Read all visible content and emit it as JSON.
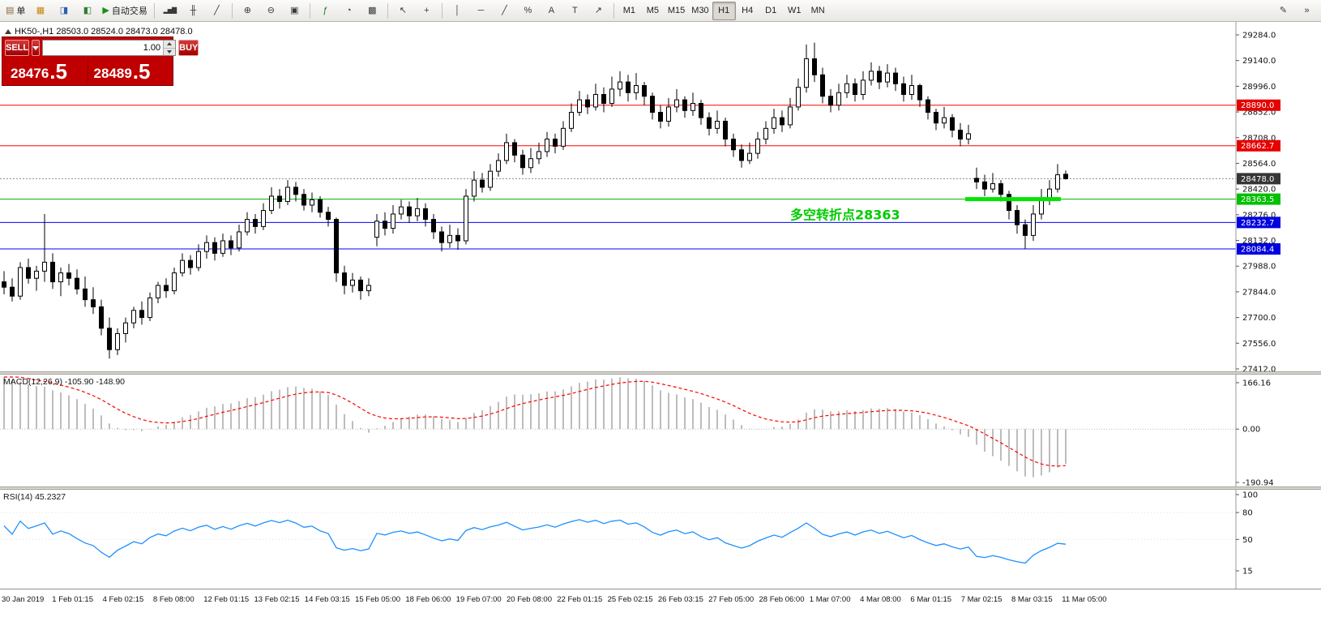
{
  "toolbar": {
    "groups": [
      {
        "items": [
          {
            "name": "new-order-button",
            "icon": "new-order",
            "label": "单"
          },
          {
            "name": "market-watch-button",
            "icon": "market-watch"
          },
          {
            "name": "data-window-button",
            "icon": "data-window"
          },
          {
            "name": "navigator-button",
            "icon": "navigator"
          },
          {
            "name": "autotrading-button",
            "icon": "autotrading",
            "label": "自动交易"
          }
        ]
      },
      {
        "items": [
          {
            "name": "bar-chart-button",
            "icon": "bar-chart"
          },
          {
            "name": "candle-chart-button",
            "icon": "candle-chart"
          },
          {
            "name": "line-chart-button",
            "icon": "line-chart"
          }
        ]
      },
      {
        "items": [
          {
            "name": "zoom-in-button",
            "icon": "zoom-in"
          },
          {
            "name": "zoom-out-button",
            "icon": "zoom-out"
          },
          {
            "name": "tile-windows-button",
            "icon": "tile-windows"
          }
        ]
      },
      {
        "items": [
          {
            "name": "indicators-button",
            "icon": "indicators"
          },
          {
            "name": "periods-button",
            "icon": "periods"
          },
          {
            "name": "templates-button",
            "icon": "templates"
          }
        ]
      },
      {
        "items": [
          {
            "name": "cursor-button",
            "icon": "cursor"
          },
          {
            "name": "crosshair-button",
            "icon": "crosshair"
          }
        ]
      },
      {
        "items": [
          {
            "name": "vertical-line-button",
            "icon": "vertical-line"
          },
          {
            "name": "horizontal-line-button",
            "icon": "horizontal-line"
          },
          {
            "name": "trendline-button",
            "icon": "trendline"
          },
          {
            "name": "fibonacci-button",
            "icon": "fibonacci"
          },
          {
            "name": "text-button",
            "icon": "text"
          },
          {
            "name": "label-button",
            "icon": "label"
          },
          {
            "name": "arrows-button",
            "icon": "arrows"
          }
        ]
      },
      {
        "items": [
          {
            "name": "tf-m1-button",
            "label": "M1"
          },
          {
            "name": "tf-m5-button",
            "label": "M5"
          },
          {
            "name": "tf-m15-button",
            "label": "M15"
          },
          {
            "name": "tf-m30-button",
            "label": "M30"
          },
          {
            "name": "tf-h1-button",
            "label": "H1",
            "active": true
          },
          {
            "name": "tf-h4-button",
            "label": "H4"
          },
          {
            "name": "tf-d1-button",
            "label": "D1"
          },
          {
            "name": "tf-w1-button",
            "label": "W1"
          },
          {
            "name": "tf-mn-button",
            "label": "MN"
          }
        ]
      }
    ],
    "right_items": [
      {
        "name": "pencil-button",
        "icon": "pencil"
      },
      {
        "name": "quick-jump-button",
        "icon": "quick-jump"
      }
    ]
  },
  "chart": {
    "header": "HK50-,H1 28503.0 28524.0 28473.0 28478.0",
    "trade_panel": {
      "sell_label": "SELL",
      "buy_label": "BUY",
      "volume": "1.00",
      "sell_price": "28476.5",
      "buy_price": "28489.5"
    },
    "hlines": [
      {
        "price": 28890.0,
        "label": "28890.0",
        "color": "#ff0000",
        "badge": "#e60000"
      },
      {
        "price": 28662.7,
        "label": "28662.7",
        "color": "#ff0000",
        "badge": "#e60000"
      },
      {
        "price": 28478.0,
        "label": "28478.0",
        "color": "#8a8a8a",
        "badge": "#353535",
        "dash": "2,2"
      },
      {
        "price": 28363.5,
        "label": "28363.5",
        "color": "#00b400",
        "badge": "#00c000"
      },
      {
        "price": 28232.7,
        "label": "28232.7",
        "color": "#0000ff",
        "badge": "#0000e0"
      },
      {
        "price": 28084.4,
        "label": "28084.4",
        "color": "#0000ff",
        "badge": "#0000e0"
      }
    ],
    "green_zone": {
      "price": 28363.5,
      "from_index": 119,
      "to_index": 130,
      "color": "#00e600",
      "thickness": 5
    },
    "annotation": {
      "text": "多空转折点28363",
      "color": "#00cc00",
      "index": 97,
      "price": 28272,
      "font_size": 16
    }
  },
  "chart_data": [
    {
      "type": "candlestick",
      "title": "HK50- H1",
      "symbol": "HK50-",
      "timeframe": "H1",
      "y_axis": {
        "min": 27412.0,
        "max": 29284.0,
        "step": 144.0
      },
      "x_axis_labels": [
        "30 Jan 2019",
        "1 Feb 01:15",
        "4 Feb 02:15",
        "8 Feb 08:00",
        "12 Feb 01:15",
        "13 Feb 02:15",
        "14 Feb 03:15",
        "15 Feb 05:00",
        "18 Feb 06:00",
        "19 Feb 07:00",
        "20 Feb 08:00",
        "22 Feb 01:15",
        "25 Feb 02:15",
        "26 Feb 03:15",
        "27 Feb 05:00",
        "28 Feb 06:00",
        "1 Mar 07:00",
        "4 Mar 08:00",
        "6 Mar 01:15",
        "7 Mar 02:15",
        "8 Mar 03:15",
        "11 Mar 05:00"
      ],
      "ohlc": [
        [
          27900,
          27960,
          27830,
          27870
        ],
        [
          27870,
          27920,
          27790,
          27820
        ],
        [
          27820,
          28010,
          27800,
          27980
        ],
        [
          27980,
          28030,
          27890,
          27920
        ],
        [
          27920,
          27990,
          27850,
          27960
        ],
        [
          27960,
          28280,
          27900,
          28010
        ],
        [
          28010,
          28060,
          27860,
          27900
        ],
        [
          27900,
          27980,
          27820,
          27950
        ],
        [
          27950,
          28000,
          27880,
          27920
        ],
        [
          27920,
          27970,
          27830,
          27860
        ],
        [
          27860,
          27930,
          27760,
          27800
        ],
        [
          27800,
          27870,
          27720,
          27760
        ],
        [
          27760,
          27800,
          27600,
          27640
        ],
        [
          27640,
          27700,
          27470,
          27520
        ],
        [
          27520,
          27640,
          27490,
          27610
        ],
        [
          27610,
          27700,
          27560,
          27670
        ],
        [
          27670,
          27760,
          27640,
          27740
        ],
        [
          27740,
          27790,
          27660,
          27700
        ],
        [
          27700,
          27840,
          27680,
          27810
        ],
        [
          27810,
          27900,
          27780,
          27880
        ],
        [
          27880,
          27920,
          27810,
          27850
        ],
        [
          27850,
          27980,
          27830,
          27950
        ],
        [
          27950,
          28060,
          27930,
          28020
        ],
        [
          28020,
          28050,
          27940,
          27980
        ],
        [
          27980,
          28110,
          27960,
          28070
        ],
        [
          28070,
          28160,
          28030,
          28120
        ],
        [
          28120,
          28150,
          28020,
          28060
        ],
        [
          28060,
          28170,
          28040,
          28130
        ],
        [
          28130,
          28160,
          28050,
          28090
        ],
        [
          28090,
          28220,
          28070,
          28180
        ],
        [
          28180,
          28290,
          28160,
          28250
        ],
        [
          28250,
          28280,
          28170,
          28210
        ],
        [
          28210,
          28340,
          28190,
          28300
        ],
        [
          28300,
          28430,
          28280,
          28380
        ],
        [
          28380,
          28420,
          28310,
          28350
        ],
        [
          28350,
          28470,
          28330,
          28430
        ],
        [
          28430,
          28460,
          28350,
          28390
        ],
        [
          28390,
          28420,
          28300,
          28330
        ],
        [
          28330,
          28400,
          28290,
          28360
        ],
        [
          28360,
          28380,
          28260,
          28290
        ],
        [
          28290,
          28320,
          28210,
          28250
        ],
        [
          28250,
          28260,
          27900,
          27950
        ],
        [
          27950,
          27990,
          27830,
          27880
        ],
        [
          27880,
          27950,
          27840,
          27910
        ],
        [
          27910,
          27930,
          27800,
          27850
        ],
        [
          27850,
          27920,
          27820,
          27880
        ],
        [
          28150,
          28280,
          28100,
          28240
        ],
        [
          28240,
          28290,
          28160,
          28200
        ],
        [
          28200,
          28330,
          28170,
          28280
        ],
        [
          28280,
          28360,
          28250,
          28320
        ],
        [
          28320,
          28350,
          28230,
          28270
        ],
        [
          28270,
          28370,
          28240,
          28310
        ],
        [
          28310,
          28340,
          28210,
          28250
        ],
        [
          28250,
          28280,
          28140,
          28180
        ],
        [
          28180,
          28210,
          28070,
          28120
        ],
        [
          28120,
          28220,
          28090,
          28160
        ],
        [
          28160,
          28200,
          28080,
          28130
        ],
        [
          28130,
          28420,
          28110,
          28380
        ],
        [
          28380,
          28520,
          28350,
          28470
        ],
        [
          28470,
          28510,
          28400,
          28430
        ],
        [
          28430,
          28560,
          28410,
          28520
        ],
        [
          28520,
          28620,
          28490,
          28580
        ],
        [
          28580,
          28730,
          28560,
          28680
        ],
        [
          28680,
          28700,
          28570,
          28610
        ],
        [
          28610,
          28640,
          28500,
          28540
        ],
        [
          28540,
          28650,
          28510,
          28590
        ],
        [
          28590,
          28680,
          28560,
          28630
        ],
        [
          28630,
          28740,
          28600,
          28700
        ],
        [
          28700,
          28730,
          28620,
          28660
        ],
        [
          28660,
          28800,
          28640,
          28760
        ],
        [
          28760,
          28900,
          28740,
          28850
        ],
        [
          28850,
          28970,
          28830,
          28920
        ],
        [
          28920,
          28950,
          28840,
          28880
        ],
        [
          28880,
          29010,
          28860,
          28950
        ],
        [
          28950,
          28990,
          28850,
          28900
        ],
        [
          28900,
          29050,
          28880,
          28980
        ],
        [
          28980,
          29080,
          28940,
          29020
        ],
        [
          29020,
          29060,
          28910,
          28960
        ],
        [
          28960,
          29070,
          28920,
          29000
        ],
        [
          29000,
          29020,
          28890,
          28940
        ],
        [
          28940,
          28960,
          28810,
          28850
        ],
        [
          28850,
          28890,
          28760,
          28800
        ],
        [
          28800,
          28930,
          28770,
          28880
        ],
        [
          28880,
          28980,
          28850,
          28920
        ],
        [
          28920,
          28940,
          28820,
          28860
        ],
        [
          28860,
          28960,
          28830,
          28900
        ],
        [
          28900,
          28920,
          28780,
          28820
        ],
        [
          28820,
          28850,
          28720,
          28760
        ],
        [
          28760,
          28860,
          28730,
          28800
        ],
        [
          28800,
          28820,
          28660,
          28700
        ],
        [
          28700,
          28730,
          28600,
          28640
        ],
        [
          28640,
          28670,
          28540,
          28580
        ],
        [
          28580,
          28680,
          28560,
          28620
        ],
        [
          28620,
          28740,
          28590,
          28700
        ],
        [
          28700,
          28800,
          28670,
          28760
        ],
        [
          28760,
          28870,
          28730,
          28820
        ],
        [
          28820,
          28860,
          28740,
          28780
        ],
        [
          28780,
          28930,
          28760,
          28880
        ],
        [
          28880,
          29040,
          28860,
          28990
        ],
        [
          28990,
          29230,
          28960,
          29150
        ],
        [
          29150,
          29240,
          29020,
          29060
        ],
        [
          29060,
          29100,
          28900,
          28940
        ],
        [
          28940,
          28980,
          28850,
          28890
        ],
        [
          28890,
          29010,
          28860,
          28960
        ],
        [
          28960,
          29060,
          28930,
          29010
        ],
        [
          29010,
          29040,
          28910,
          28950
        ],
        [
          28950,
          29080,
          28920,
          29030
        ],
        [
          29030,
          29130,
          29000,
          29080
        ],
        [
          29080,
          29110,
          28980,
          29020
        ],
        [
          29020,
          29120,
          28990,
          29070
        ],
        [
          29070,
          29100,
          28970,
          29010
        ],
        [
          29010,
          29050,
          28910,
          28950
        ],
        [
          28950,
          29060,
          28920,
          29000
        ],
        [
          29000,
          29010,
          28880,
          28920
        ],
        [
          28920,
          28940,
          28810,
          28850
        ],
        [
          28850,
          28870,
          28750,
          28790
        ],
        [
          28790,
          28880,
          28760,
          28820
        ],
        [
          28820,
          28840,
          28710,
          28750
        ],
        [
          28750,
          28790,
          28660,
          28700
        ],
        [
          28700,
          28780,
          28670,
          28730
        ],
        [
          28480,
          28540,
          28420,
          28460
        ],
        [
          28460,
          28500,
          28380,
          28420
        ],
        [
          28420,
          28510,
          28400,
          28450
        ],
        [
          28450,
          28470,
          28350,
          28390
        ],
        [
          28390,
          28410,
          28250,
          28300
        ],
        [
          28300,
          28330,
          28170,
          28220
        ],
        [
          28220,
          28250,
          28084,
          28160
        ],
        [
          28160,
          28330,
          28130,
          28280
        ],
        [
          28280,
          28420,
          28250,
          28360
        ],
        [
          28360,
          28470,
          28330,
          28420
        ],
        [
          28420,
          28560,
          28400,
          28500
        ],
        [
          28503,
          28524,
          28473,
          28478
        ]
      ]
    },
    {
      "type": "line",
      "name": "MACD",
      "label": "MACD(12,26,9) -105.90 -148.90",
      "params": {
        "fast": 12,
        "slow": 26,
        "signal": 9
      },
      "display_values": [
        -105.9,
        -148.9
      ],
      "scale_labels": [
        "166.16",
        "0.00",
        "-190.94"
      ],
      "derived_from": "ohlc"
    },
    {
      "type": "line",
      "name": "RSI",
      "label": "RSI(14) 45.2327",
      "params": {
        "period": 14
      },
      "display_value": 45.2327,
      "scale_labels": [
        "100",
        "80",
        "50",
        "15"
      ],
      "derived_from": "ohlc"
    }
  ]
}
